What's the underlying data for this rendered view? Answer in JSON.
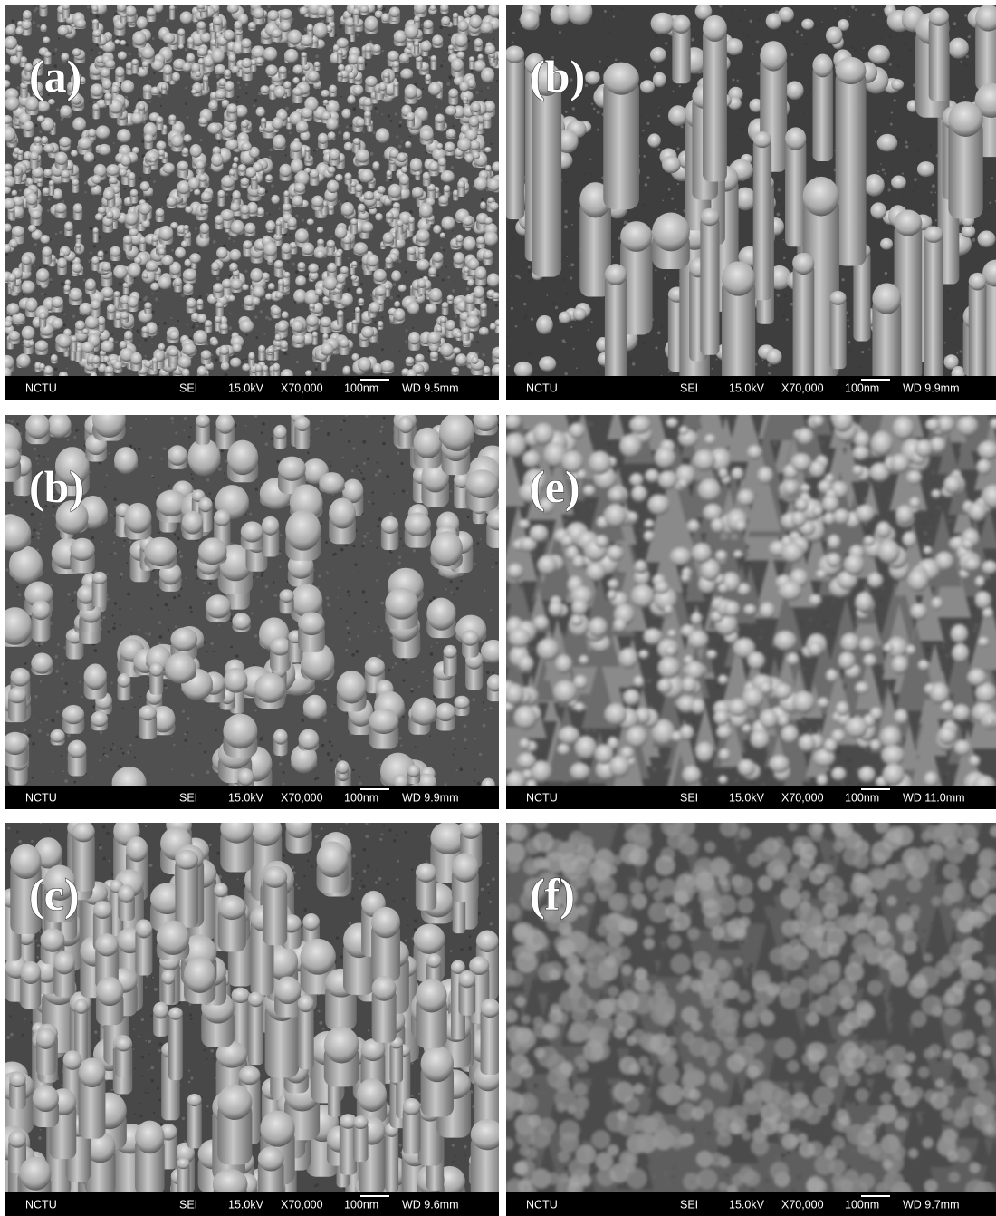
{
  "panels": [
    {
      "label": "(a)",
      "info": {
        "org": "NCTU",
        "mode": "SEI",
        "voltage": "15.0kV",
        "magnification": "X70,000",
        "scale": "100nm",
        "wd": "WD 9.5mm"
      }
    },
    {
      "label": "(b)",
      "info": {
        "org": "NCTU",
        "mode": "SEI",
        "voltage": "15.0kV",
        "magnification": "X70,000",
        "scale": "100nm",
        "wd": "WD 9.9mm"
      }
    },
    {
      "label": "(b)",
      "info": {
        "org": "NCTU",
        "mode": "SEI",
        "voltage": "15.0kV",
        "magnification": "X70,000",
        "scale": "100nm",
        "wd": "WD 9.9mm"
      }
    },
    {
      "label": "(e)",
      "info": {
        "org": "NCTU",
        "mode": "SEI",
        "voltage": "15.0kV",
        "magnification": "X70,000",
        "scale": "100nm",
        "wd": "WD 11.0mm"
      }
    },
    {
      "label": "(c)",
      "info": {
        "org": "NCTU",
        "mode": "SEI",
        "voltage": "15.0kV",
        "magnification": "X70,000",
        "scale": "100nm",
        "wd": "WD 9.6mm"
      }
    },
    {
      "label": "(f)",
      "info": {
        "org": "NCTU",
        "mode": "SEI",
        "voltage": "15.0kV",
        "magnification": "X70,000",
        "scale": "100nm",
        "wd": "WD 9.7mm"
      }
    }
  ]
}
